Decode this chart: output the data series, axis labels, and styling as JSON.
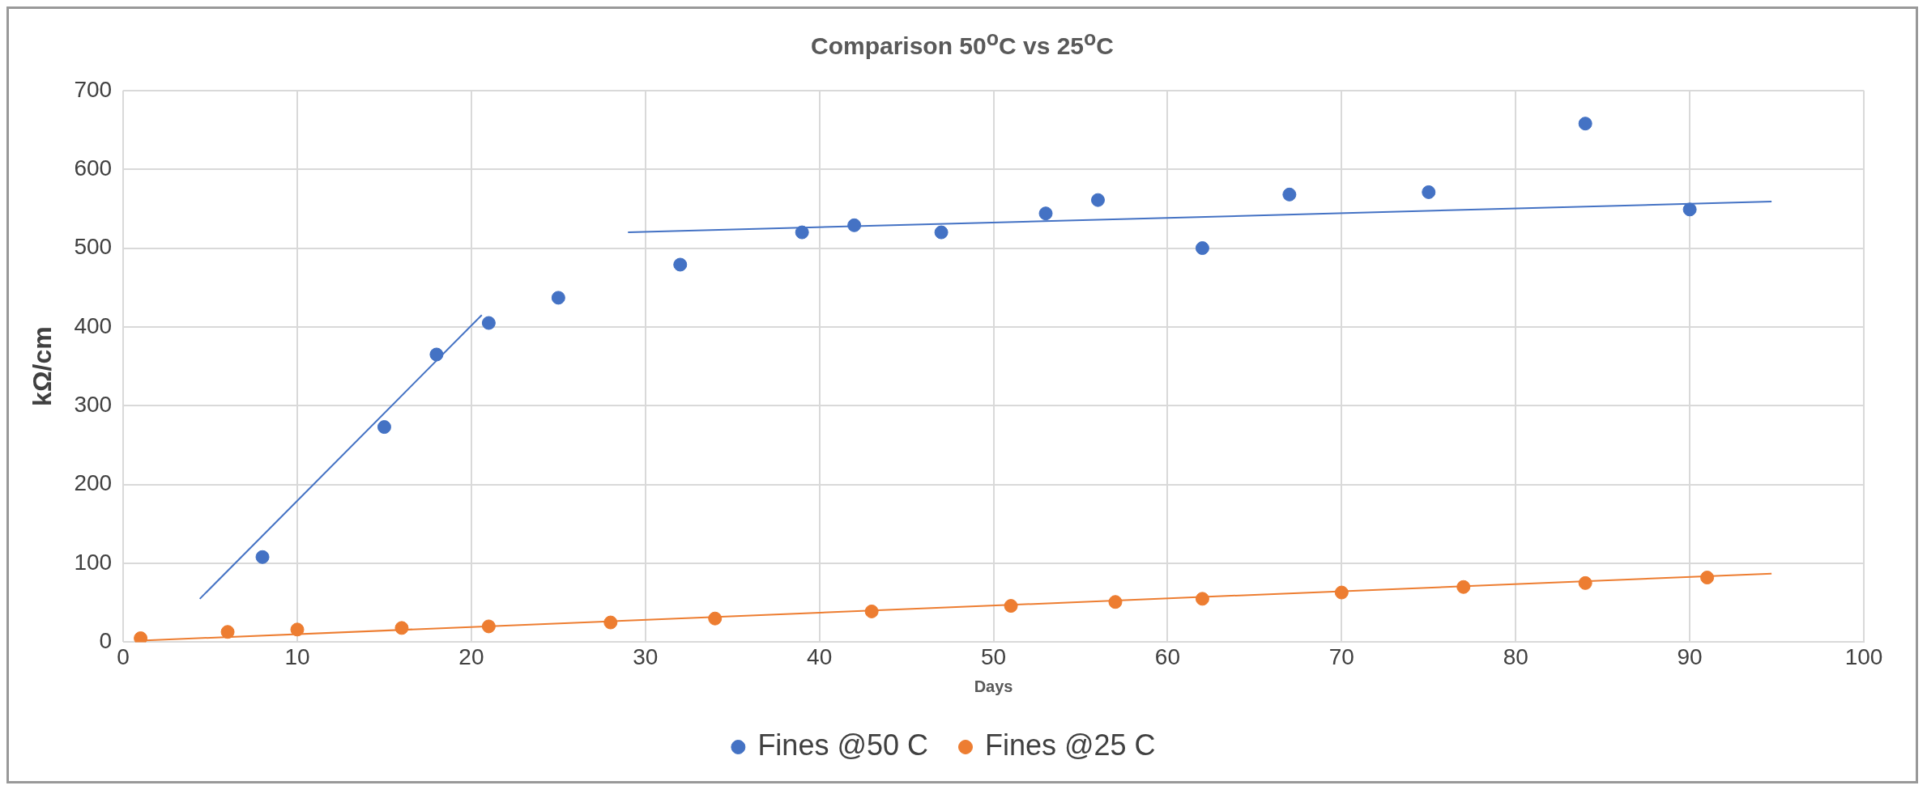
{
  "chart_data": {
    "type": "scatter",
    "title": "Comparison 50$^{o}$C vs 25$^{o}$C",
    "xlabel": "Days",
    "ylabel": "kΩ/cm",
    "xlim": [
      0,
      100
    ],
    "xticks": [
      0,
      10,
      20,
      30,
      40,
      50,
      60,
      70,
      80,
      90,
      100
    ],
    "ylim": [
      0,
      700
    ],
    "yticks": [
      0,
      100,
      200,
      300,
      400,
      500,
      600,
      700
    ],
    "grid": true,
    "legend": "bottom",
    "marker": "circle",
    "series": [
      {
        "name": "Fines @50 C",
        "color": "#4472c4",
        "x": [
          8,
          15,
          18,
          21,
          25,
          32,
          39,
          42,
          47,
          53,
          56,
          62,
          67,
          75,
          84,
          90
        ],
        "values": [
          108,
          273,
          365,
          405,
          437,
          479,
          520,
          529,
          520,
          544,
          561,
          500,
          568,
          571,
          658,
          549
        ]
      },
      {
        "name": "Fines @25 C",
        "color": "#ed7d31",
        "x": [
          1,
          6,
          10,
          16,
          21,
          28,
          34,
          43,
          51,
          57,
          62,
          70,
          77,
          84,
          91
        ],
        "values": [
          5,
          13,
          16,
          18,
          20,
          25,
          30,
          39,
          46,
          51,
          55,
          63,
          70,
          75,
          82
        ]
      },
      {
        "type": "line",
        "marker": "none",
        "color": "#4472c4",
        "x": [
          4.4,
          20.6
        ],
        "values": [
          55,
          415
        ]
      },
      {
        "type": "line",
        "marker": "none",
        "color": "#4472c4",
        "x": [
          29,
          94.7
        ],
        "values": [
          520,
          559
        ]
      },
      {
        "type": "line",
        "marker": "none",
        "color": "#ed7d31",
        "x": [
          1,
          94.7
        ],
        "values": [
          2,
          87
        ]
      }
    ]
  }
}
